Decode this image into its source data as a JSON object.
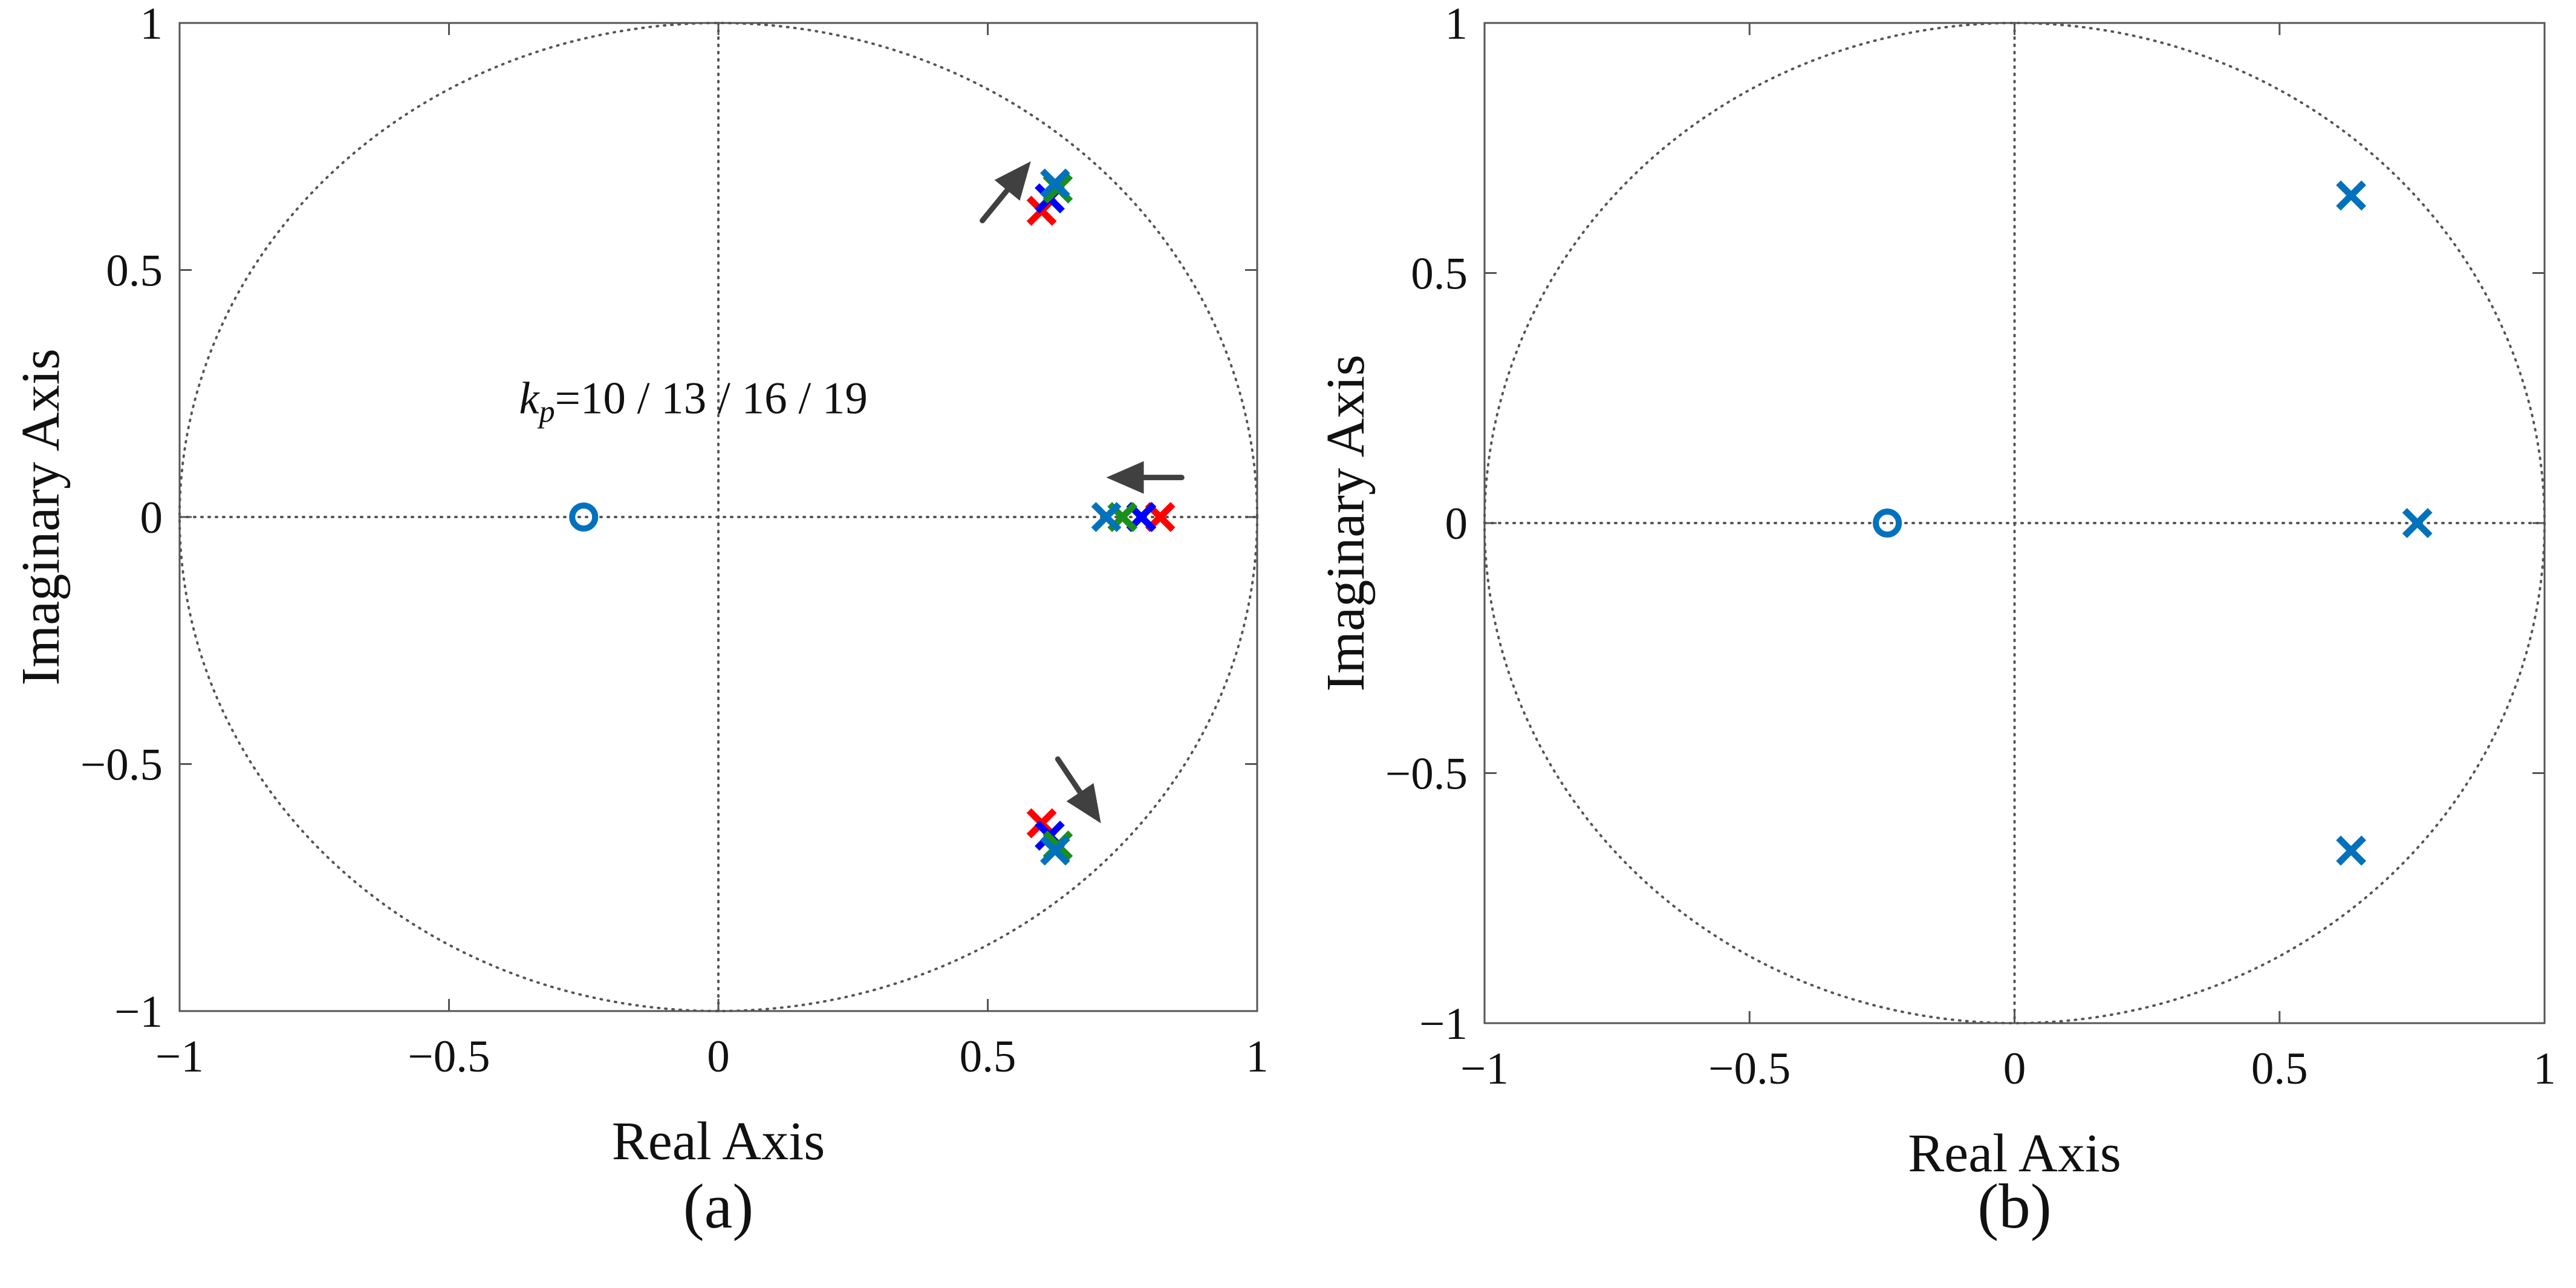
{
  "chart_data": [
    {
      "type": "scatter",
      "panel_label": "(a)",
      "xlabel": "Real Axis",
      "ylabel": "Imaginary Axis",
      "xlim": [
        -1,
        1
      ],
      "ylim": [
        -1,
        1
      ],
      "xticks": [
        -1,
        -0.5,
        0,
        0.5,
        1
      ],
      "yticks": [
        -1,
        -0.5,
        0,
        0.5,
        1
      ],
      "xtick_labels": [
        "−1",
        "−0.5",
        "0",
        "0.5",
        "1"
      ],
      "ytick_labels": [
        "−1",
        "−0.5",
        "0",
        "0.5",
        "1"
      ],
      "unit_circle": true,
      "annotation": {
        "text_var": "k",
        "text_sub": "p",
        "text_rest": "=10 / 13 / 16 / 19",
        "x": -0.37,
        "y": 0.21
      },
      "arrows": [
        {
          "from": [
            0.49,
            0.6
          ],
          "to": [
            0.58,
            0.72
          ]
        },
        {
          "from": [
            0.86,
            0.08
          ],
          "to": [
            0.72,
            0.08
          ]
        },
        {
          "from": [
            0.63,
            -0.49
          ],
          "to": [
            0.71,
            -0.62
          ]
        }
      ],
      "series": [
        {
          "name": "kp=10",
          "color": "#FF0000",
          "poles": [
            [
              0.6,
              0.62
            ],
            [
              0.82,
              0.0
            ],
            [
              0.6,
              -0.62
            ]
          ]
        },
        {
          "name": "kp=13",
          "color": "#0000FF",
          "poles": [
            [
              0.615,
              0.645
            ],
            [
              0.785,
              0.0
            ],
            [
              0.615,
              -0.645
            ]
          ]
        },
        {
          "name": "kp=16",
          "color": "#1A8F1A",
          "poles": [
            [
              0.63,
              0.665
            ],
            [
              0.75,
              0.0
            ],
            [
              0.63,
              -0.665
            ]
          ]
        },
        {
          "name": "kp=19",
          "color": "#0072BD",
          "poles": [
            [
              0.625,
              0.675
            ],
            [
              0.72,
              0.0
            ],
            [
              0.625,
              -0.675
            ]
          ]
        }
      ],
      "zeros": [
        {
          "color": "#0072BD",
          "points": [
            [
              -0.25,
              0.0
            ]
          ]
        }
      ]
    },
    {
      "type": "scatter",
      "panel_label": "(b)",
      "xlabel": "Real Axis",
      "ylabel": "Imaginary Axis",
      "xlim": [
        -1,
        1
      ],
      "ylim": [
        -1,
        1
      ],
      "xticks": [
        -1,
        -0.5,
        0,
        0.5,
        1
      ],
      "yticks": [
        -1,
        -0.5,
        0,
        0.5,
        1
      ],
      "xtick_labels": [
        "−1",
        "−0.5",
        "0",
        "0.5",
        "1"
      ],
      "ytick_labels": [
        "−1",
        "−0.5",
        "0",
        "0.5",
        "1"
      ],
      "unit_circle": true,
      "series": [
        {
          "name": "poles",
          "color": "#0072BD",
          "poles": [
            [
              0.635,
              0.655
            ],
            [
              0.76,
              0.0
            ],
            [
              0.635,
              -0.655
            ]
          ]
        }
      ],
      "zeros": [
        {
          "color": "#0072BD",
          "points": [
            [
              -0.24,
              0.0
            ]
          ]
        }
      ]
    }
  ]
}
